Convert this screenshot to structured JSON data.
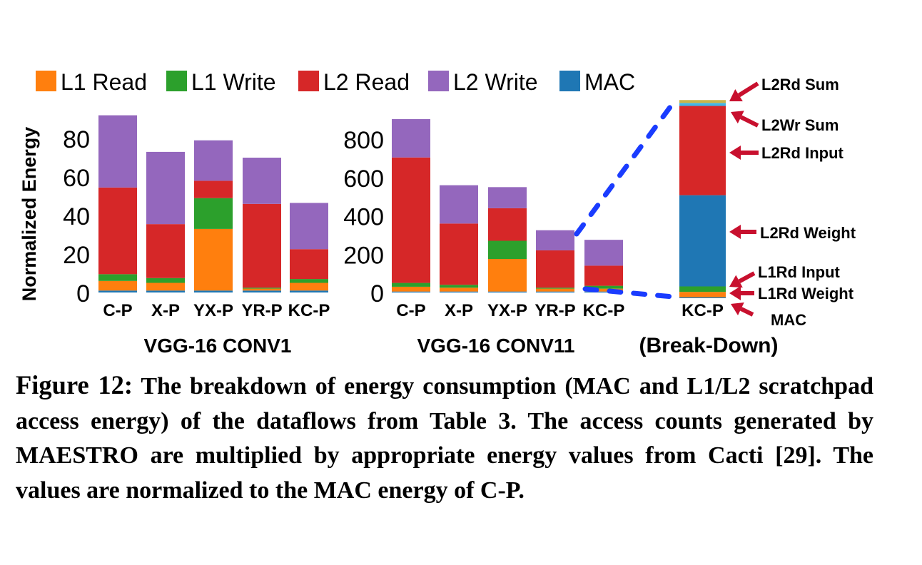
{
  "legend": [
    {
      "label": "L1 Read",
      "color": "#ff7f0e"
    },
    {
      "label": "L1 Write",
      "color": "#2ca02c"
    },
    {
      "label": "L2 Read",
      "color": "#d62728"
    },
    {
      "label": "L2 Write",
      "color": "#9467bd"
    },
    {
      "label": "MAC",
      "color": "#1f77b4"
    }
  ],
  "chart_data": [
    {
      "type": "bar",
      "stacked": true,
      "title": "VGG-16 CONV1",
      "ylabel": "Normalized Energy",
      "ylim": [
        0,
        92
      ],
      "yticks": [
        0,
        20,
        40,
        60,
        80
      ],
      "categories": [
        "C-P",
        "X-P",
        "YX-P",
        "YR-P",
        "KC-P"
      ],
      "series": [
        {
          "name": "MAC",
          "values": [
            1,
            1,
            1,
            1,
            1
          ]
        },
        {
          "name": "L1 Read",
          "values": [
            5,
            4,
            32,
            1,
            4
          ]
        },
        {
          "name": "L1 Write",
          "values": [
            3.5,
            2.5,
            16,
            0.5,
            2
          ]
        },
        {
          "name": "L2 Read",
          "values": [
            45,
            28,
            9,
            43.5,
            15.5
          ]
        },
        {
          "name": "L2 Write",
          "values": [
            37.5,
            37.5,
            21,
            24,
            24
          ]
        }
      ]
    },
    {
      "type": "bar",
      "stacked": true,
      "title": "VGG-16 CONV11",
      "ylim": [
        0,
        920
      ],
      "yticks": [
        0,
        200,
        400,
        600,
        800
      ],
      "categories": [
        "C-P",
        "X-P",
        "YX-P",
        "YR-P",
        "KC-P"
      ],
      "series": [
        {
          "name": "MAC",
          "values": [
            5,
            5,
            5,
            5,
            5
          ]
        },
        {
          "name": "L1 Read",
          "values": [
            25,
            20,
            170,
            15,
            15
          ]
        },
        {
          "name": "L1 Write",
          "values": [
            20,
            15,
            95,
            5,
            15
          ]
        },
        {
          "name": "L2 Read",
          "values": [
            655,
            320,
            170,
            195,
            105
          ]
        },
        {
          "name": "L2 Write",
          "values": [
            200,
            200,
            110,
            105,
            135
          ]
        }
      ]
    },
    {
      "type": "bar",
      "stacked": true,
      "title": "(Break-Down)",
      "categories": [
        "KC-P"
      ],
      "ylim": [
        0,
        100
      ],
      "series": [
        {
          "name": "MAC",
          "values": [
            0.5
          ],
          "color": "#1f77b4"
        },
        {
          "name": "L1Rd Weight",
          "values": [
            2.7
          ],
          "color": "#ff7f0e"
        },
        {
          "name": "L1Rd Input",
          "values": [
            2.8
          ],
          "color": "#2ca02c"
        },
        {
          "name": "L2Rd Weight",
          "values": [
            46.5
          ],
          "color": "#1f77b4"
        },
        {
          "name": "L2Rd Input",
          "values": [
            45.5
          ],
          "color": "#d62728"
        },
        {
          "name": "L2Wr Sum",
          "values": [
            1.5
          ],
          "color": "#41b6e6"
        },
        {
          "name": "L2Rd Sum",
          "values": [
            1.5
          ],
          "color": "#c8b44a"
        }
      ],
      "annotations": [
        "L2Rd Sum",
        "L2Wr Sum",
        "L2Rd Input",
        "L2Rd Weight",
        "L1Rd Input",
        "L1Rd Weight",
        "MAC"
      ]
    }
  ],
  "caption": {
    "lead": "Figure 12:",
    "text": " The breakdown of energy consumption (MAC and L1/L2 scratchpad access energy) of the dataflows from Table 3. The access counts generated by MAESTRO are multiplied by appropriate energy values from Cacti [29]. The values are normalized to the MAC energy of C-P."
  }
}
